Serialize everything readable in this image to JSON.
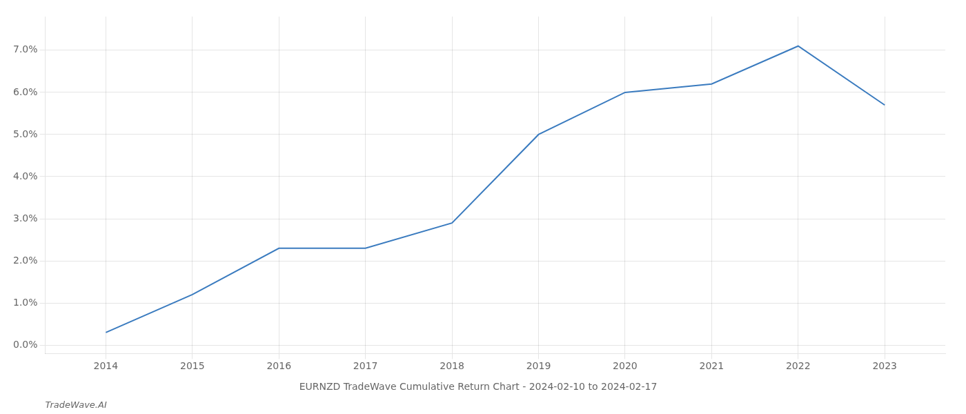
{
  "chart_data": {
    "type": "line",
    "title": "EURNZD TradeWave Cumulative Return Chart - 2024-02-10 to 2024-02-17",
    "annotations": [
      "TradeWave.AI"
    ],
    "x": [
      2014,
      2015,
      2016,
      2017,
      2018,
      2019,
      2020,
      2021,
      2022,
      2023
    ],
    "values": [
      0.003,
      0.012,
      0.023,
      0.023,
      0.029,
      0.05,
      0.06,
      0.062,
      0.071,
      0.057
    ],
    "color": "#3a7bbf",
    "xlim": [
      2013.3,
      2023.7
    ],
    "xticks": [
      2014,
      2015,
      2016,
      2017,
      2018,
      2019,
      2020,
      2021,
      2022,
      2023
    ],
    "ylim": [
      -0.002,
      0.078
    ],
    "yticks": [
      {
        "value": 0.0,
        "label": "0.0%"
      },
      {
        "value": 0.01,
        "label": "1.0%"
      },
      {
        "value": 0.02,
        "label": "2.0%"
      },
      {
        "value": 0.03,
        "label": "3.0%"
      },
      {
        "value": 0.04,
        "label": "4.0%"
      },
      {
        "value": 0.05,
        "label": "5.0%"
      },
      {
        "value": 0.06,
        "label": "6.0%"
      },
      {
        "value": 0.07,
        "label": "7.0%"
      }
    ],
    "grid": true
  }
}
